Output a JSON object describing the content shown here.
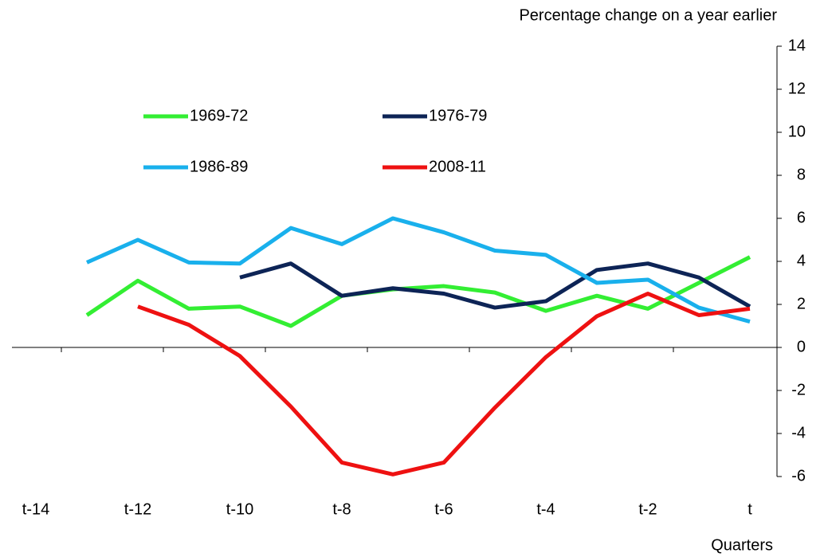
{
  "chart_data": {
    "type": "line",
    "title": "Percentage change on a year earlier",
    "x_label": "Quarters",
    "categories": [
      "t-14",
      null,
      "t-12",
      null,
      "t-10",
      null,
      "t-8",
      null,
      "t-6",
      null,
      "t-4",
      null,
      "t-2",
      null,
      "t"
    ],
    "ylim": [
      -6,
      14
    ],
    "yticks": [
      -6,
      -4,
      -2,
      0,
      2,
      4,
      6,
      8,
      10,
      12,
      14
    ],
    "y_axis_side": "right",
    "legend": "upper left",
    "series": [
      {
        "name": "1969-72",
        "color": "#33ee33",
        "values": [
          null,
          1.5,
          3.1,
          1.8,
          1.9,
          1.0,
          2.4,
          2.7,
          2.85,
          2.55,
          1.7,
          2.4,
          1.8,
          3.0,
          4.2
        ]
      },
      {
        "name": "1976-79",
        "color": "#0d2456",
        "values": [
          null,
          null,
          null,
          null,
          3.25,
          3.9,
          2.4,
          2.75,
          2.5,
          1.85,
          2.15,
          3.6,
          3.9,
          3.25,
          1.9
        ]
      },
      {
        "name": "1986-89",
        "color": "#19b0ec",
        "values": [
          null,
          3.95,
          5.0,
          3.95,
          3.9,
          5.55,
          4.8,
          6.0,
          5.35,
          4.5,
          4.3,
          3.0,
          3.15,
          1.85,
          1.2
        ]
      },
      {
        "name": "2008-11",
        "color": "#ee1111",
        "values": [
          null,
          null,
          1.9,
          1.05,
          -0.4,
          -2.75,
          -5.35,
          -5.9,
          -5.35,
          -2.8,
          -0.45,
          1.45,
          2.5,
          1.5,
          1.8
        ]
      }
    ]
  }
}
